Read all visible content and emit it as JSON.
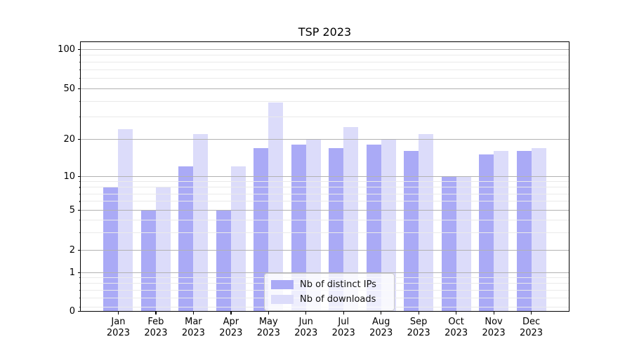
{
  "title": "TSP 2023",
  "chart_data": {
    "type": "bar",
    "title": "TSP 2023",
    "categories": [
      "Jan",
      "Feb",
      "Mar",
      "Apr",
      "May",
      "Jun",
      "Jul",
      "Aug",
      "Sep",
      "Oct",
      "Nov",
      "Dec"
    ],
    "category_year": "2023",
    "series": [
      {
        "name": "Nb of distinct IPs",
        "color": "#aaaaf6",
        "values": [
          8,
          5,
          12,
          5,
          17,
          18,
          17,
          18,
          16,
          10,
          15,
          16
        ]
      },
      {
        "name": "Nb of downloads",
        "color": "#dcdcfa",
        "values": [
          24,
          8,
          22,
          12,
          39,
          20,
          25,
          20,
          22,
          10,
          16,
          17
        ]
      }
    ],
    "xlabel": "",
    "ylabel": "",
    "yscale": "symlog",
    "y_major_ticks": [
      0,
      1,
      2,
      5,
      10,
      20,
      50,
      100
    ],
    "y_minor_ticks": [
      0.5,
      0.6,
      0.7,
      0.8,
      0.9,
      3,
      4,
      6,
      7,
      8,
      9,
      30,
      40,
      60,
      70,
      80,
      90
    ],
    "ylim": [
      0,
      114
    ],
    "grid": true,
    "legend_position": "lower center",
    "grid_major_color": "#b2b2b2",
    "grid_minor_color": "#eaeaea"
  }
}
